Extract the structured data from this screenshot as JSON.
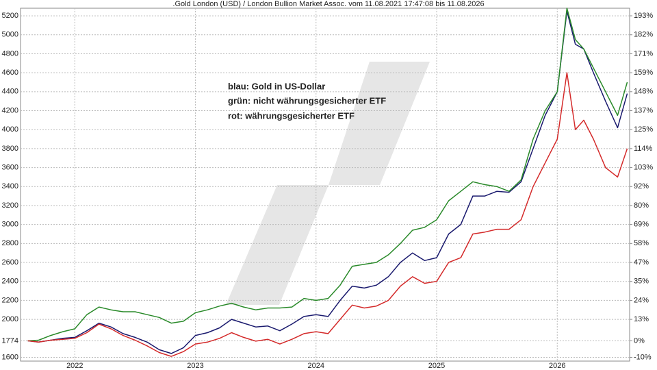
{
  "chart_data": {
    "type": "line",
    "title": ".Gold London (USD) / London Bullion Market Assoc. vom 11.08.2021 17:47:08 bis 11.08.2026",
    "x": [
      2021.61,
      2021.7,
      2021.8,
      2021.9,
      2022.0,
      2022.1,
      2022.2,
      2022.3,
      2022.4,
      2022.5,
      2022.6,
      2022.7,
      2022.8,
      2022.9,
      2023.0,
      2023.1,
      2023.2,
      2023.3,
      2023.4,
      2023.5,
      2023.6,
      2023.7,
      2023.8,
      2023.9,
      2024.0,
      2024.1,
      2024.2,
      2024.3,
      2024.4,
      2024.5,
      2024.6,
      2024.7,
      2024.8,
      2024.9,
      2025.0,
      2025.1,
      2025.2,
      2025.3,
      2025.4,
      2025.5,
      2025.6,
      2025.7,
      2025.8,
      2025.9,
      2026.0,
      2026.08,
      2026.15,
      2026.22,
      2026.3,
      2026.4,
      2026.5,
      2026.58
    ],
    "series": [
      {
        "name": "blau: Gold in US-Dollar",
        "color": "#1a1a6e",
        "values": [
          1774,
          1760,
          1780,
          1800,
          1810,
          1880,
          1960,
          1920,
          1850,
          1810,
          1760,
          1680,
          1640,
          1700,
          1830,
          1860,
          1910,
          2000,
          1960,
          1920,
          1930,
          1880,
          1950,
          2030,
          2050,
          2030,
          2200,
          2350,
          2330,
          2360,
          2450,
          2600,
          2700,
          2620,
          2650,
          2900,
          3000,
          3300,
          3300,
          3350,
          3340,
          3450,
          3800,
          4150,
          4400,
          5250,
          4900,
          4850,
          4600,
          4300,
          4020,
          4380
        ]
      },
      {
        "name": "grün: nicht währungsgesicherter ETF",
        "color": "#2a8a2a",
        "values": [
          1774,
          1780,
          1830,
          1870,
          1900,
          2050,
          2130,
          2100,
          2080,
          2080,
          2050,
          2020,
          1960,
          1980,
          2070,
          2100,
          2140,
          2170,
          2130,
          2100,
          2120,
          2120,
          2130,
          2220,
          2200,
          2220,
          2360,
          2560,
          2580,
          2600,
          2680,
          2800,
          2940,
          2970,
          3050,
          3250,
          3350,
          3450,
          3420,
          3400,
          3350,
          3470,
          3900,
          4200,
          4400,
          5280,
          4950,
          4850,
          4650,
          4400,
          4150,
          4500
        ]
      },
      {
        "name": "rot: währungsgesicherter ETF",
        "color": "#d42a2a",
        "values": [
          1774,
          1760,
          1780,
          1790,
          1800,
          1860,
          1950,
          1900,
          1830,
          1780,
          1720,
          1650,
          1610,
          1660,
          1740,
          1760,
          1800,
          1860,
          1810,
          1770,
          1790,
          1740,
          1790,
          1850,
          1870,
          1850,
          2000,
          2150,
          2120,
          2140,
          2200,
          2350,
          2450,
          2380,
          2400,
          2600,
          2650,
          2900,
          2920,
          2950,
          2950,
          3050,
          3400,
          3650,
          3900,
          4600,
          4000,
          4100,
          3900,
          3600,
          3500,
          3800
        ]
      }
    ],
    "xlim": [
      2021.55,
      2026.6
    ],
    "xticks": [
      2022,
      2023,
      2024,
      2025,
      2026
    ],
    "ylim": [
      1560,
      5280
    ],
    "yticks": [
      1600,
      1774,
      2000,
      2200,
      2400,
      2600,
      2800,
      3000,
      3200,
      3400,
      3600,
      3800,
      4000,
      4200,
      4400,
      4600,
      4800,
      5000,
      5200
    ],
    "y2lim": [
      -12.06,
      197.63
    ],
    "y2ticks": [
      {
        "value": -9.81,
        "label": "-10%"
      },
      {
        "value": 0,
        "label": "0%"
      },
      {
        "value": 12.74,
        "label": "13%"
      },
      {
        "value": 24.01,
        "label": "24%"
      },
      {
        "value": 35.29,
        "label": "35%"
      },
      {
        "value": 46.56,
        "label": "47%"
      },
      {
        "value": 57.84,
        "label": "58%"
      },
      {
        "value": 69.11,
        "label": "69%"
      },
      {
        "value": 80.38,
        "label": "80%"
      },
      {
        "value": 91.66,
        "label": "92%"
      },
      {
        "value": 102.93,
        "label": "103%"
      },
      {
        "value": 114.21,
        "label": "114%"
      },
      {
        "value": 125.48,
        "label": "125%"
      },
      {
        "value": 136.75,
        "label": "137%"
      },
      {
        "value": 148.03,
        "label": "148%"
      },
      {
        "value": 159.3,
        "label": "159%"
      },
      {
        "value": 170.58,
        "label": "171%"
      },
      {
        "value": 181.85,
        "label": "182%"
      },
      {
        "value": 193.12,
        "label": "193%"
      }
    ],
    "grid": true
  }
}
